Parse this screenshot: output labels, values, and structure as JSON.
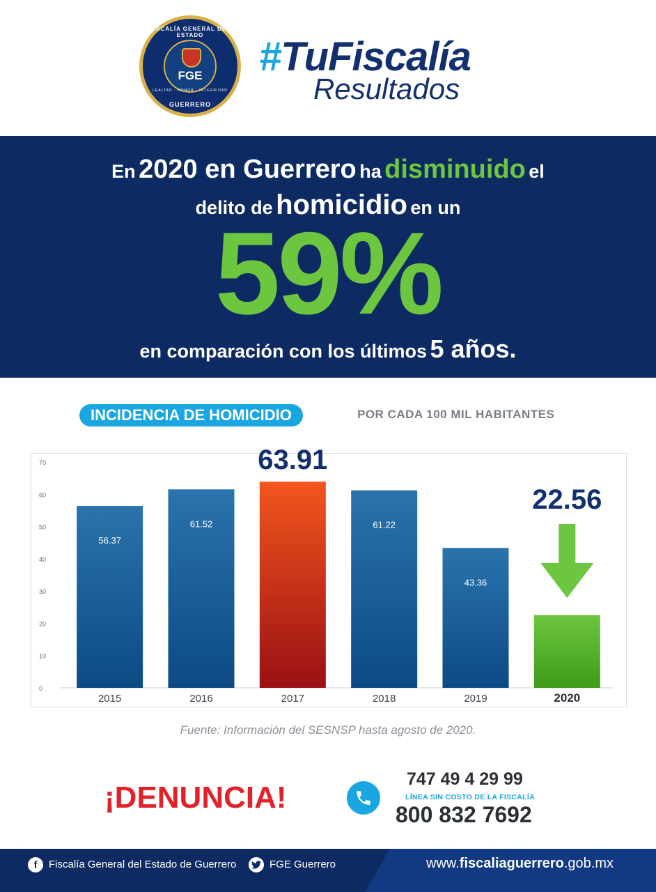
{
  "header": {
    "seal": {
      "top_text": "FISCALÍA GENERAL DEL ESTADO",
      "center_text": "FGE",
      "motto": "LEALTAD · HONOR · INTEGRIDAD",
      "bottom_text": "GUERRERO"
    },
    "hashtag_symbol": "#",
    "hashtag_word": "TuFiscalía",
    "subtitle": "Resultados"
  },
  "banner": {
    "l1_a": "En",
    "l1_b": "2020 en Guerrero",
    "l1_c": "ha",
    "l1_d": "disminuido",
    "l1_e": "el",
    "l2_a": "delito de",
    "l2_b": "homicidio",
    "l2_c": "en un",
    "percent": "59%",
    "l3_a": "en comparación con los últimos",
    "l3_b": "5 años",
    "l3_c": "."
  },
  "chart_header": {
    "title": "INCIDENCIA DE HOMICIDIO",
    "subtitle": "POR CADA 100 MIL HABITANTES"
  },
  "chart_data": {
    "type": "bar",
    "categories": [
      "2015",
      "2016",
      "2017",
      "2018",
      "2019",
      "2020"
    ],
    "values": [
      56.37,
      61.52,
      63.91,
      61.22,
      43.36,
      22.56
    ],
    "value_labels": [
      "56.37",
      "61.52",
      "63.91",
      "61.22",
      "43.36",
      "22.56"
    ],
    "y_ticks": [
      "0",
      "10",
      "20",
      "30",
      "40",
      "50",
      "60",
      "70"
    ],
    "ylim": [
      0,
      70
    ],
    "grid": false,
    "highlight_max": "2017",
    "highlight_current": "2020",
    "colors": {
      "default_top": "#2a73ad",
      "default_bottom": "#0c4a84",
      "max_top": "#f2561d",
      "max_bottom": "#9a1014",
      "current_top": "#6cc63f",
      "current_bottom": "#3f9a1a",
      "label_dark": "#12306e",
      "arrow": "#6cc63f"
    }
  },
  "source": "Fuente: Información del SESNSP hasta agosto de 2020.",
  "call_to_action": {
    "denuncia": "¡DENUNCIA!",
    "phone_1": "747 49 4 29 99",
    "phone_note": "LÍNEA SIN COSTO DE LA FISCALÍA",
    "phone_2": "800 832 7692"
  },
  "footer": {
    "facebook_icon": "facebook-icon",
    "facebook_letter": "f",
    "facebook_text": "Fiscalía General del Estado de Guerrero",
    "twitter_icon": "twitter-icon",
    "twitter_text": "FGE Guerrero",
    "web_prefix": "www.",
    "web_bold": "fiscaliaguerrero",
    "web_suffix": ".gob.mx"
  }
}
